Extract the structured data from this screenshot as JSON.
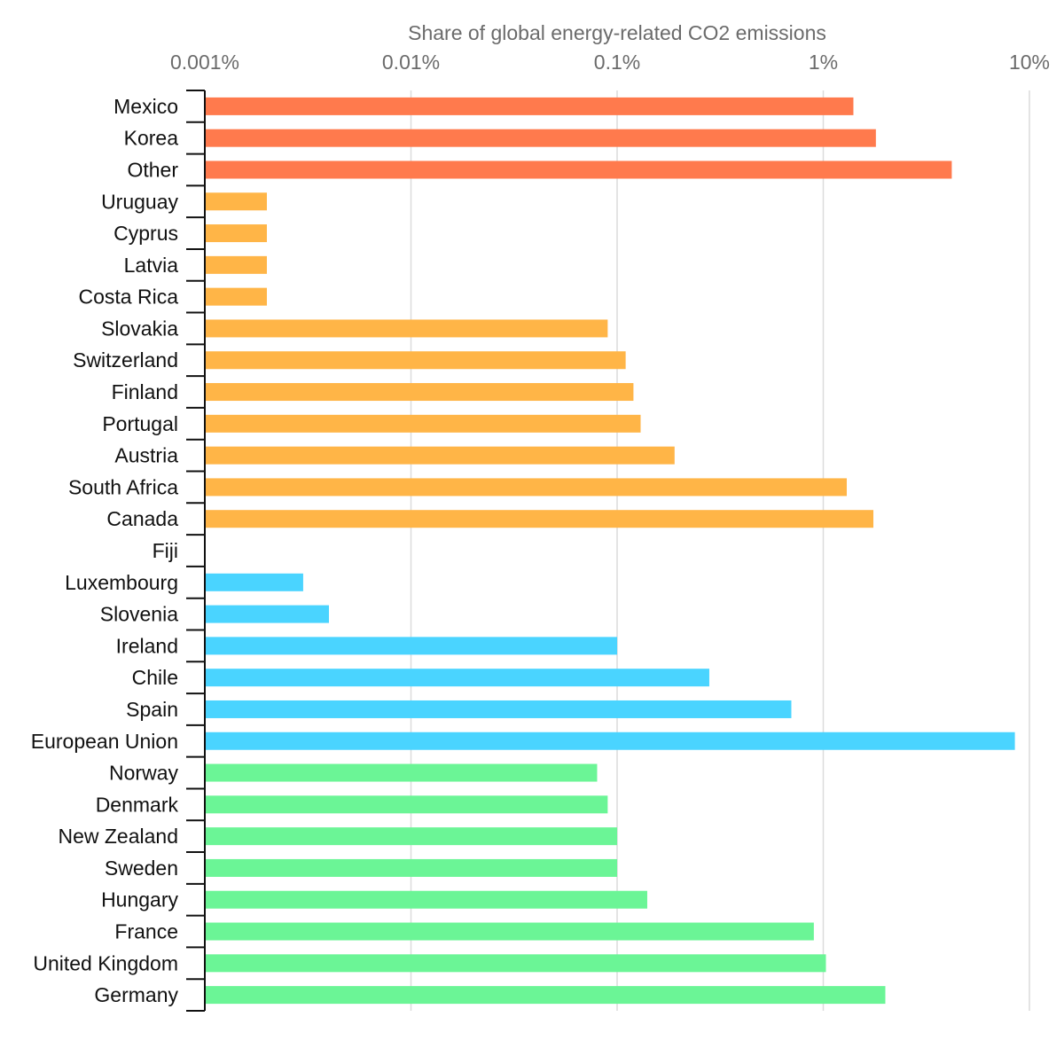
{
  "chart_data": {
    "type": "bar",
    "orientation": "horizontal",
    "title": "",
    "xlabel": "Share of global energy-related CO2 emissions",
    "ylabel": "",
    "x_scale": "log",
    "xlim": [
      0.001,
      10
    ],
    "x_ticks": [
      0.001,
      0.01,
      0.1,
      1,
      10
    ],
    "x_tick_labels": [
      "0.001%",
      "0.01%",
      "0.1%",
      "1%",
      "10%"
    ],
    "x_axis_position": "top",
    "grid": "vertical",
    "legend": "none",
    "categories": [
      "Mexico",
      "Korea",
      "Other",
      "Uruguay",
      "Cyprus",
      "Latvia",
      "Costa Rica",
      "Slovakia",
      "Switzerland",
      "Finland",
      "Portugal",
      "Austria",
      "South Africa",
      "Canada",
      "Fiji",
      "Luxembourg",
      "Slovenia",
      "Ireland",
      "Chile",
      "Spain",
      "European Union",
      "Norway",
      "Denmark",
      "New Zealand",
      "Sweden",
      "Hungary",
      "France",
      "United Kingdom",
      "Germany"
    ],
    "values": [
      1.4,
      1.8,
      4.2,
      0.002,
      0.002,
      0.002,
      0.002,
      0.09,
      0.11,
      0.12,
      0.13,
      0.19,
      1.3,
      1.75,
      0.001,
      0.003,
      0.004,
      0.1,
      0.28,
      0.7,
      8.5,
      0.08,
      0.09,
      0.1,
      0.1,
      0.14,
      0.9,
      1.03,
      2.0
    ],
    "colors": [
      "#ff7a4d",
      "#ff7a4d",
      "#ff7a4d",
      "#ffb547",
      "#ffb547",
      "#ffb547",
      "#ffb547",
      "#ffb547",
      "#ffb547",
      "#ffb547",
      "#ffb547",
      "#ffb547",
      "#ffb547",
      "#ffb547",
      "#4ad4ff",
      "#4ad4ff",
      "#4ad4ff",
      "#4ad4ff",
      "#4ad4ff",
      "#4ad4ff",
      "#4ad4ff",
      "#6bf596",
      "#6bf596",
      "#6bf596",
      "#6bf596",
      "#6bf596",
      "#6bf596",
      "#6bf596",
      "#6bf596"
    ]
  }
}
